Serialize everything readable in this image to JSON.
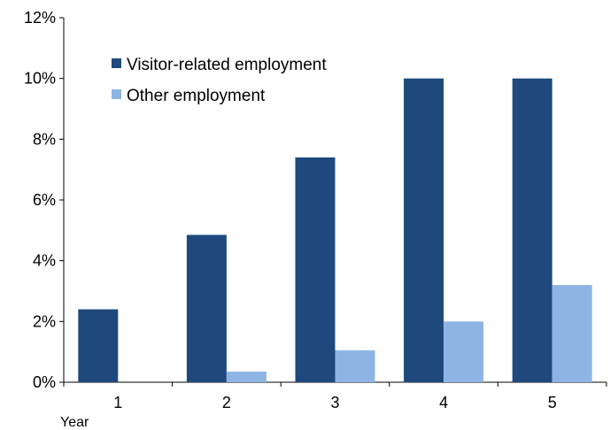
{
  "chart_data": {
    "type": "bar",
    "xlabel": "Year",
    "ylabel": "",
    "ylim": [
      0,
      12
    ],
    "y_ticks": [
      "0%",
      "2%",
      "4%",
      "6%",
      "8%",
      "10%",
      "12%"
    ],
    "y_tick_values": [
      0,
      2,
      4,
      6,
      8,
      10,
      12
    ],
    "categories": [
      "1",
      "2",
      "3",
      "4",
      "5"
    ],
    "series": [
      {
        "name": "Visitor-related employment",
        "color": "#1F497D",
        "values": [
          2.4,
          4.85,
          7.4,
          10.0,
          10.0
        ]
      },
      {
        "name": "Other employment",
        "color": "#8EB4E3",
        "values": [
          0,
          0.35,
          1.05,
          2.0,
          3.2
        ]
      }
    ],
    "grid": false,
    "legend_position": "top-left"
  }
}
